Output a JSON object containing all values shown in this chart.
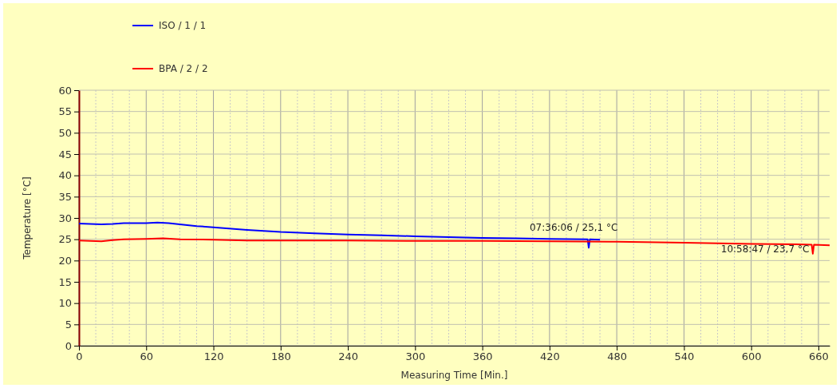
{
  "chart_data": {
    "type": "line",
    "xlabel": "Measuring Time [Min.]",
    "ylabel": "Temperature [°C]",
    "xlim": [
      0,
      670
    ],
    "xticks": [
      0,
      60,
      120,
      180,
      240,
      300,
      360,
      420,
      480,
      540,
      600,
      660
    ],
    "ylim": [
      0,
      60
    ],
    "yticks": [
      0,
      5,
      10,
      15,
      20,
      25,
      30,
      35,
      40,
      45,
      50,
      55,
      60
    ],
    "grid": true,
    "legend": "top left",
    "marker": "none",
    "line_style": "solid",
    "series": [
      {
        "name": "ISO / 1 / 1",
        "color": "#0000ff",
        "x": [
          0,
          10,
          20,
          30,
          40,
          60,
          70,
          80,
          90,
          105,
          120,
          150,
          180,
          210,
          240,
          270,
          300,
          330,
          360,
          390,
          420,
          454,
          455,
          456,
          465
        ],
        "values": [
          28.7,
          28.6,
          28.5,
          28.6,
          28.8,
          28.8,
          28.9,
          28.8,
          28.5,
          28.1,
          27.8,
          27.2,
          26.7,
          26.4,
          26.1,
          25.9,
          25.7,
          25.5,
          25.3,
          25.2,
          25.1,
          25.0,
          23.0,
          25.0,
          24.9
        ]
      },
      {
        "name": "BPA / 2 / 2",
        "color": "#ff0000",
        "x": [
          0,
          10,
          20,
          30,
          40,
          60,
          75,
          90,
          120,
          150,
          180,
          240,
          300,
          360,
          420,
          480,
          540,
          600,
          640,
          654,
          655,
          656,
          670
        ],
        "values": [
          24.7,
          24.6,
          24.5,
          24.8,
          25.0,
          25.1,
          25.2,
          25.0,
          24.9,
          24.7,
          24.7,
          24.7,
          24.6,
          24.6,
          24.5,
          24.4,
          24.2,
          23.9,
          23.8,
          23.7,
          21.6,
          23.7,
          23.6
        ]
      }
    ],
    "annotations": [
      {
        "text": "07:36:06 / 25,1 °C",
        "x": 456,
        "y": 25.1
      },
      {
        "text": "10:58:47 / 23,7 °C",
        "x": 658.8,
        "y": 23.7
      }
    ]
  }
}
